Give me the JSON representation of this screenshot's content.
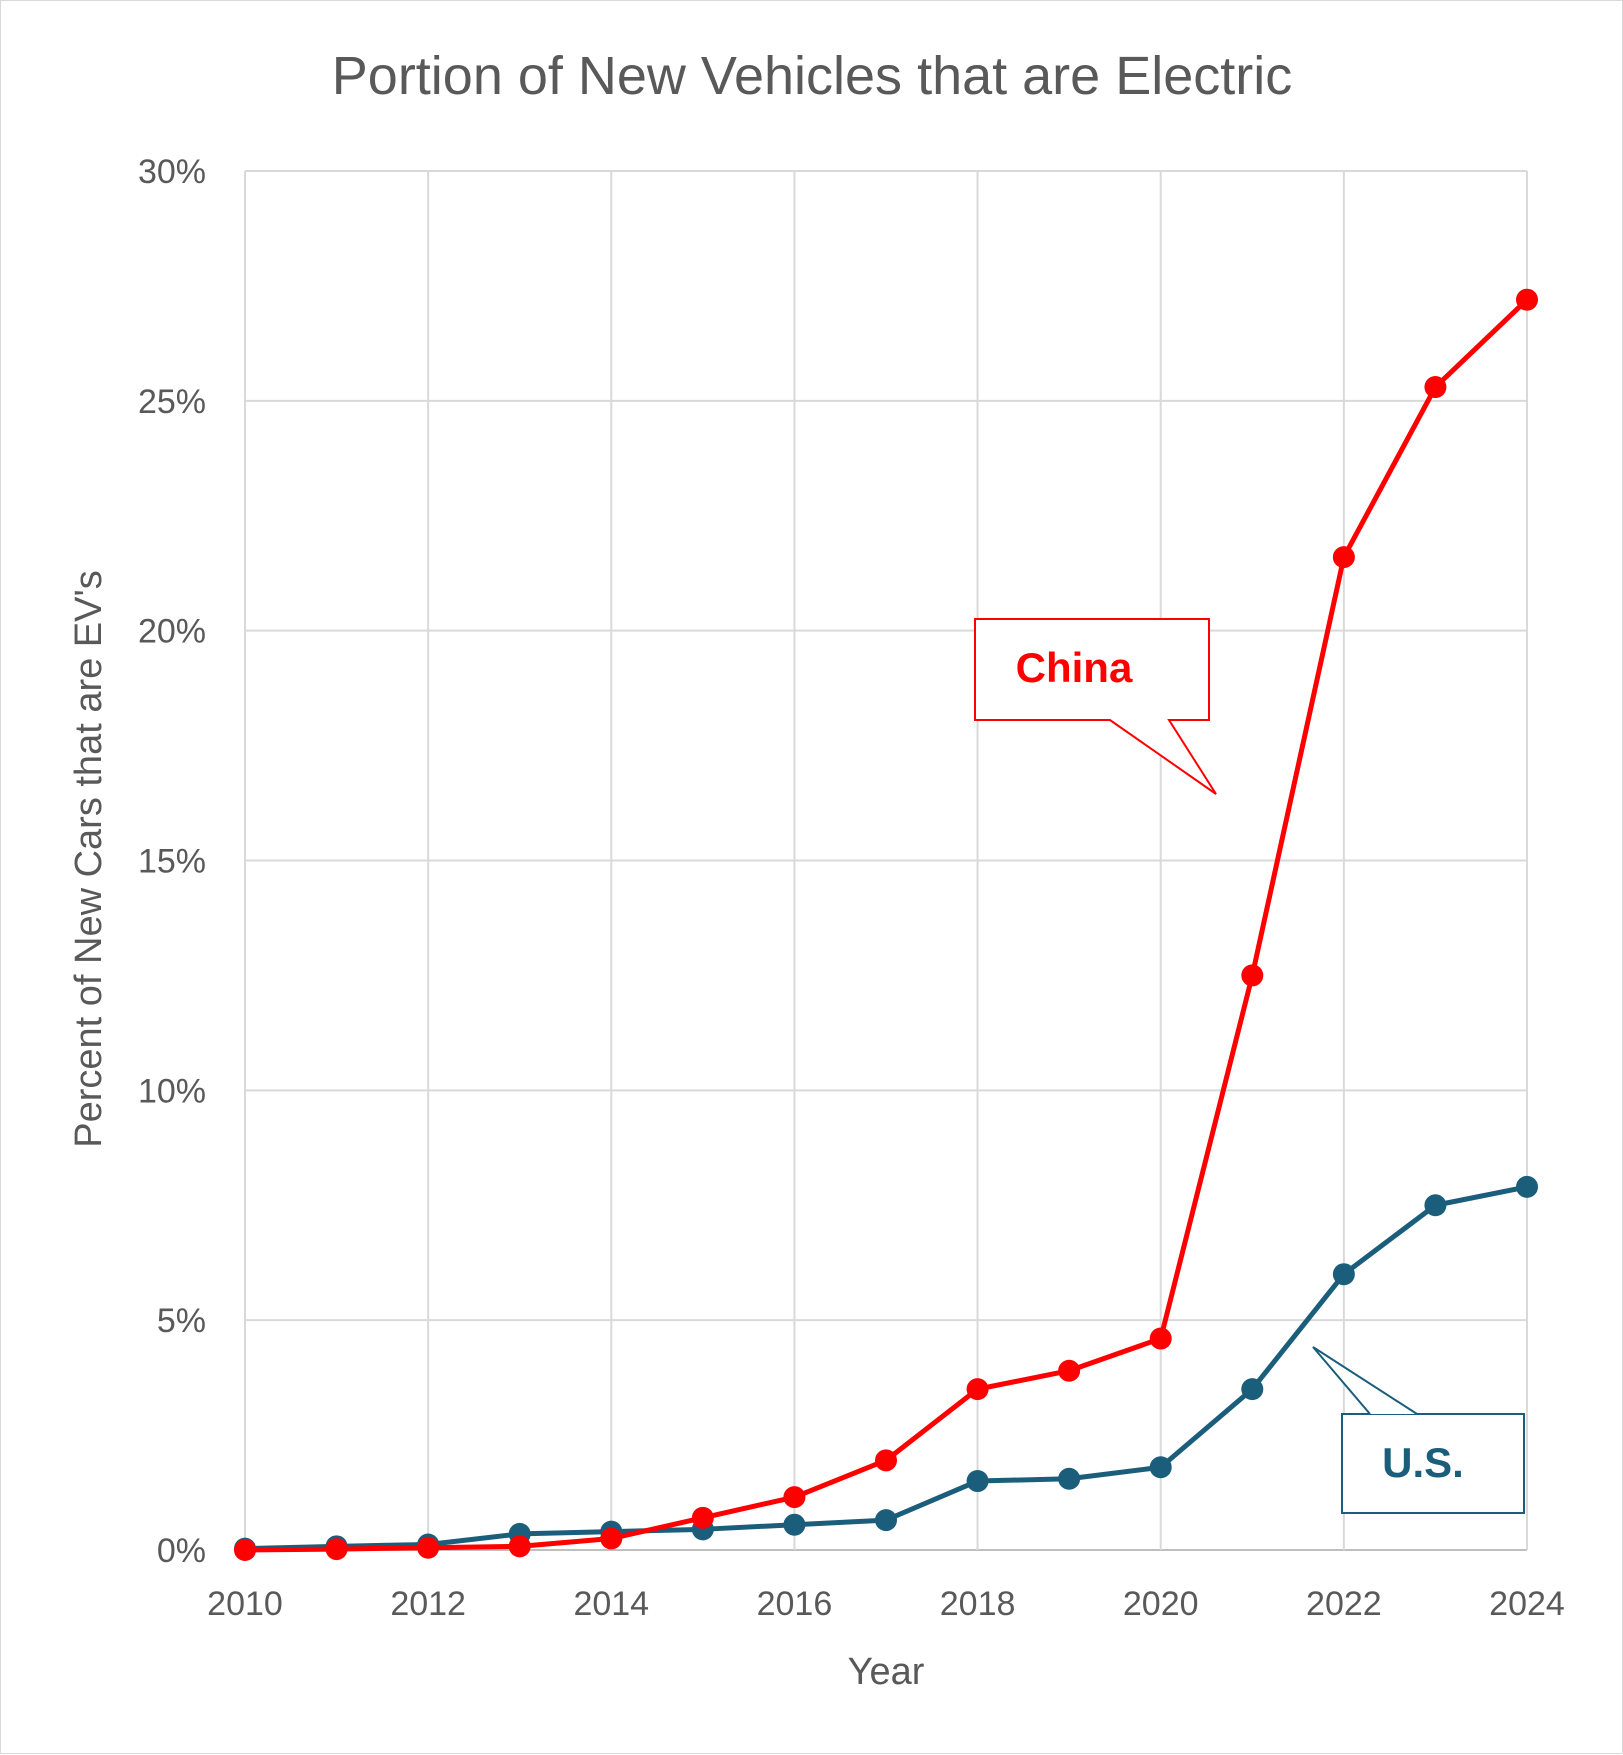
{
  "chart_data": {
    "type": "line",
    "title": "Portion of New Vehicles that are Electric",
    "xlabel": "Year",
    "ylabel": "Percent of New Cars that are EV's",
    "xlim": [
      2010,
      2024
    ],
    "ylim": [
      0,
      30
    ],
    "x_ticks": [
      "2010",
      "2012",
      "2014",
      "2016",
      "2018",
      "2020",
      "2022",
      "2024"
    ],
    "y_ticks": [
      "0%",
      "5%",
      "10%",
      "15%",
      "20%",
      "25%",
      "30%"
    ],
    "grid": true,
    "legend": "none",
    "x": [
      2010,
      2011,
      2012,
      2013,
      2014,
      2015,
      2016,
      2017,
      2018,
      2019,
      2020,
      2021,
      2022,
      2023,
      2024
    ],
    "series": [
      {
        "name": "U.S.",
        "color": "#1b5e7b",
        "values": [
          0.03,
          0.08,
          0.12,
          0.35,
          0.4,
          0.45,
          0.55,
          0.65,
          1.5,
          1.55,
          1.8,
          3.5,
          6.0,
          7.5,
          7.9
        ]
      },
      {
        "name": "China",
        "color": "#ff0000",
        "values": [
          0.0,
          0.02,
          0.05,
          0.08,
          0.25,
          0.7,
          1.15,
          1.95,
          3.5,
          3.9,
          4.6,
          12.5,
          21.6,
          25.3,
          27.2
        ]
      }
    ],
    "annotations": [
      {
        "text": "China",
        "color": "#ff0000",
        "series": "China",
        "points_to_year": 2020.6
      },
      {
        "text": "U.S.",
        "color": "#1b5e7b",
        "series": "U.S.",
        "points_to_year": 2021.6
      }
    ]
  }
}
